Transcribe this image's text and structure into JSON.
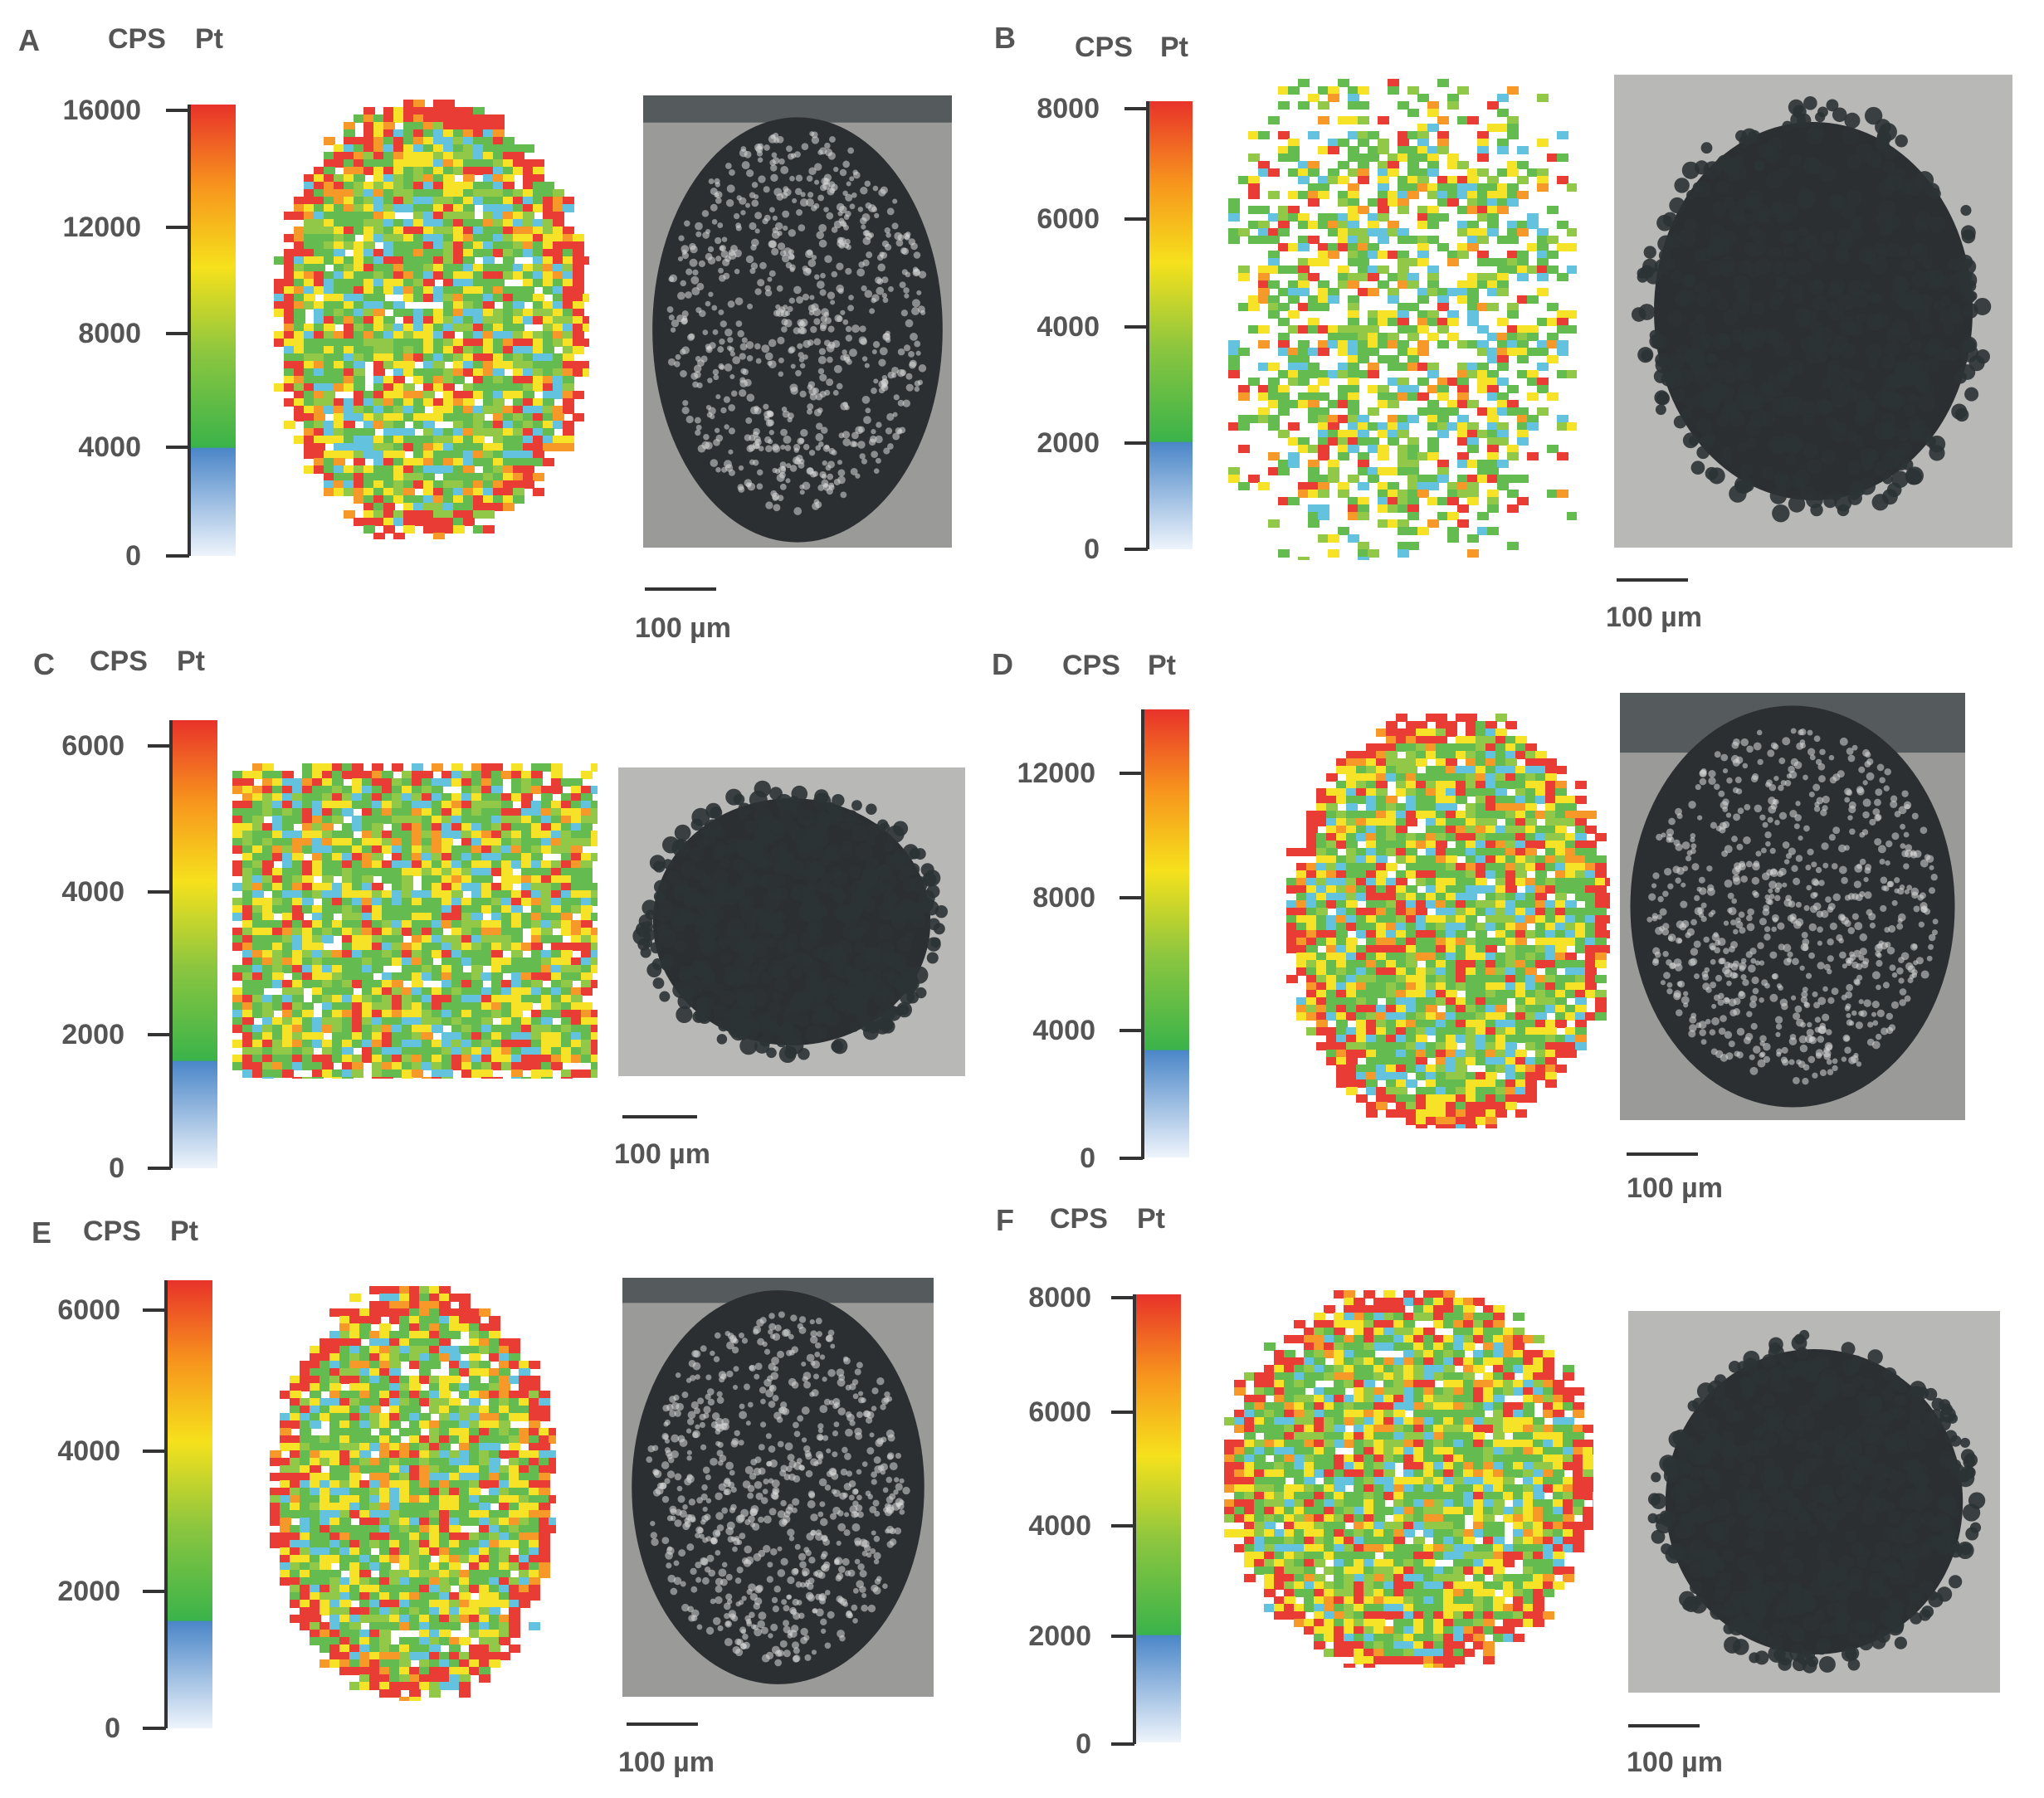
{
  "panels": [
    {
      "id": "A",
      "label": "A",
      "unit": "CPS",
      "element": "Pt",
      "ticks": [
        "16000",
        "12000",
        "8000",
        "4000",
        "0"
      ],
      "scale_label": "100 µm"
    },
    {
      "id": "B",
      "label": "B",
      "unit": "CPS",
      "element": "Pt",
      "ticks": [
        "8000",
        "6000",
        "4000",
        "2000",
        "0"
      ],
      "scale_label": "100 µm"
    },
    {
      "id": "C",
      "label": "C",
      "unit": "CPS",
      "element": "Pt",
      "ticks": [
        "6000",
        "4000",
        "2000",
        "0"
      ],
      "scale_label": "100 µm"
    },
    {
      "id": "D",
      "label": "D",
      "unit": "CPS",
      "element": "Pt",
      "ticks": [
        "12000",
        "8000",
        "4000",
        "0"
      ],
      "scale_label": "100 µm"
    },
    {
      "id": "E",
      "label": "E",
      "unit": "CPS",
      "element": "Pt",
      "ticks": [
        "6000",
        "4000",
        "2000",
        "0"
      ],
      "scale_label": "100 µm"
    },
    {
      "id": "F",
      "label": "F",
      "unit": "CPS",
      "element": "Pt",
      "ticks": [
        "8000",
        "6000",
        "4000",
        "2000",
        "0"
      ],
      "scale_label": "100 µm"
    }
  ],
  "colors": {
    "red": "#e8322a",
    "orange": "#f7941d",
    "yellow": "#f6e11c",
    "green": "#5cb947",
    "cyan": "#5bc0de",
    "blue": "#4a86c8",
    "micro_bg": "#8a8a8a",
    "micro_dark": "#2b2f31"
  }
}
